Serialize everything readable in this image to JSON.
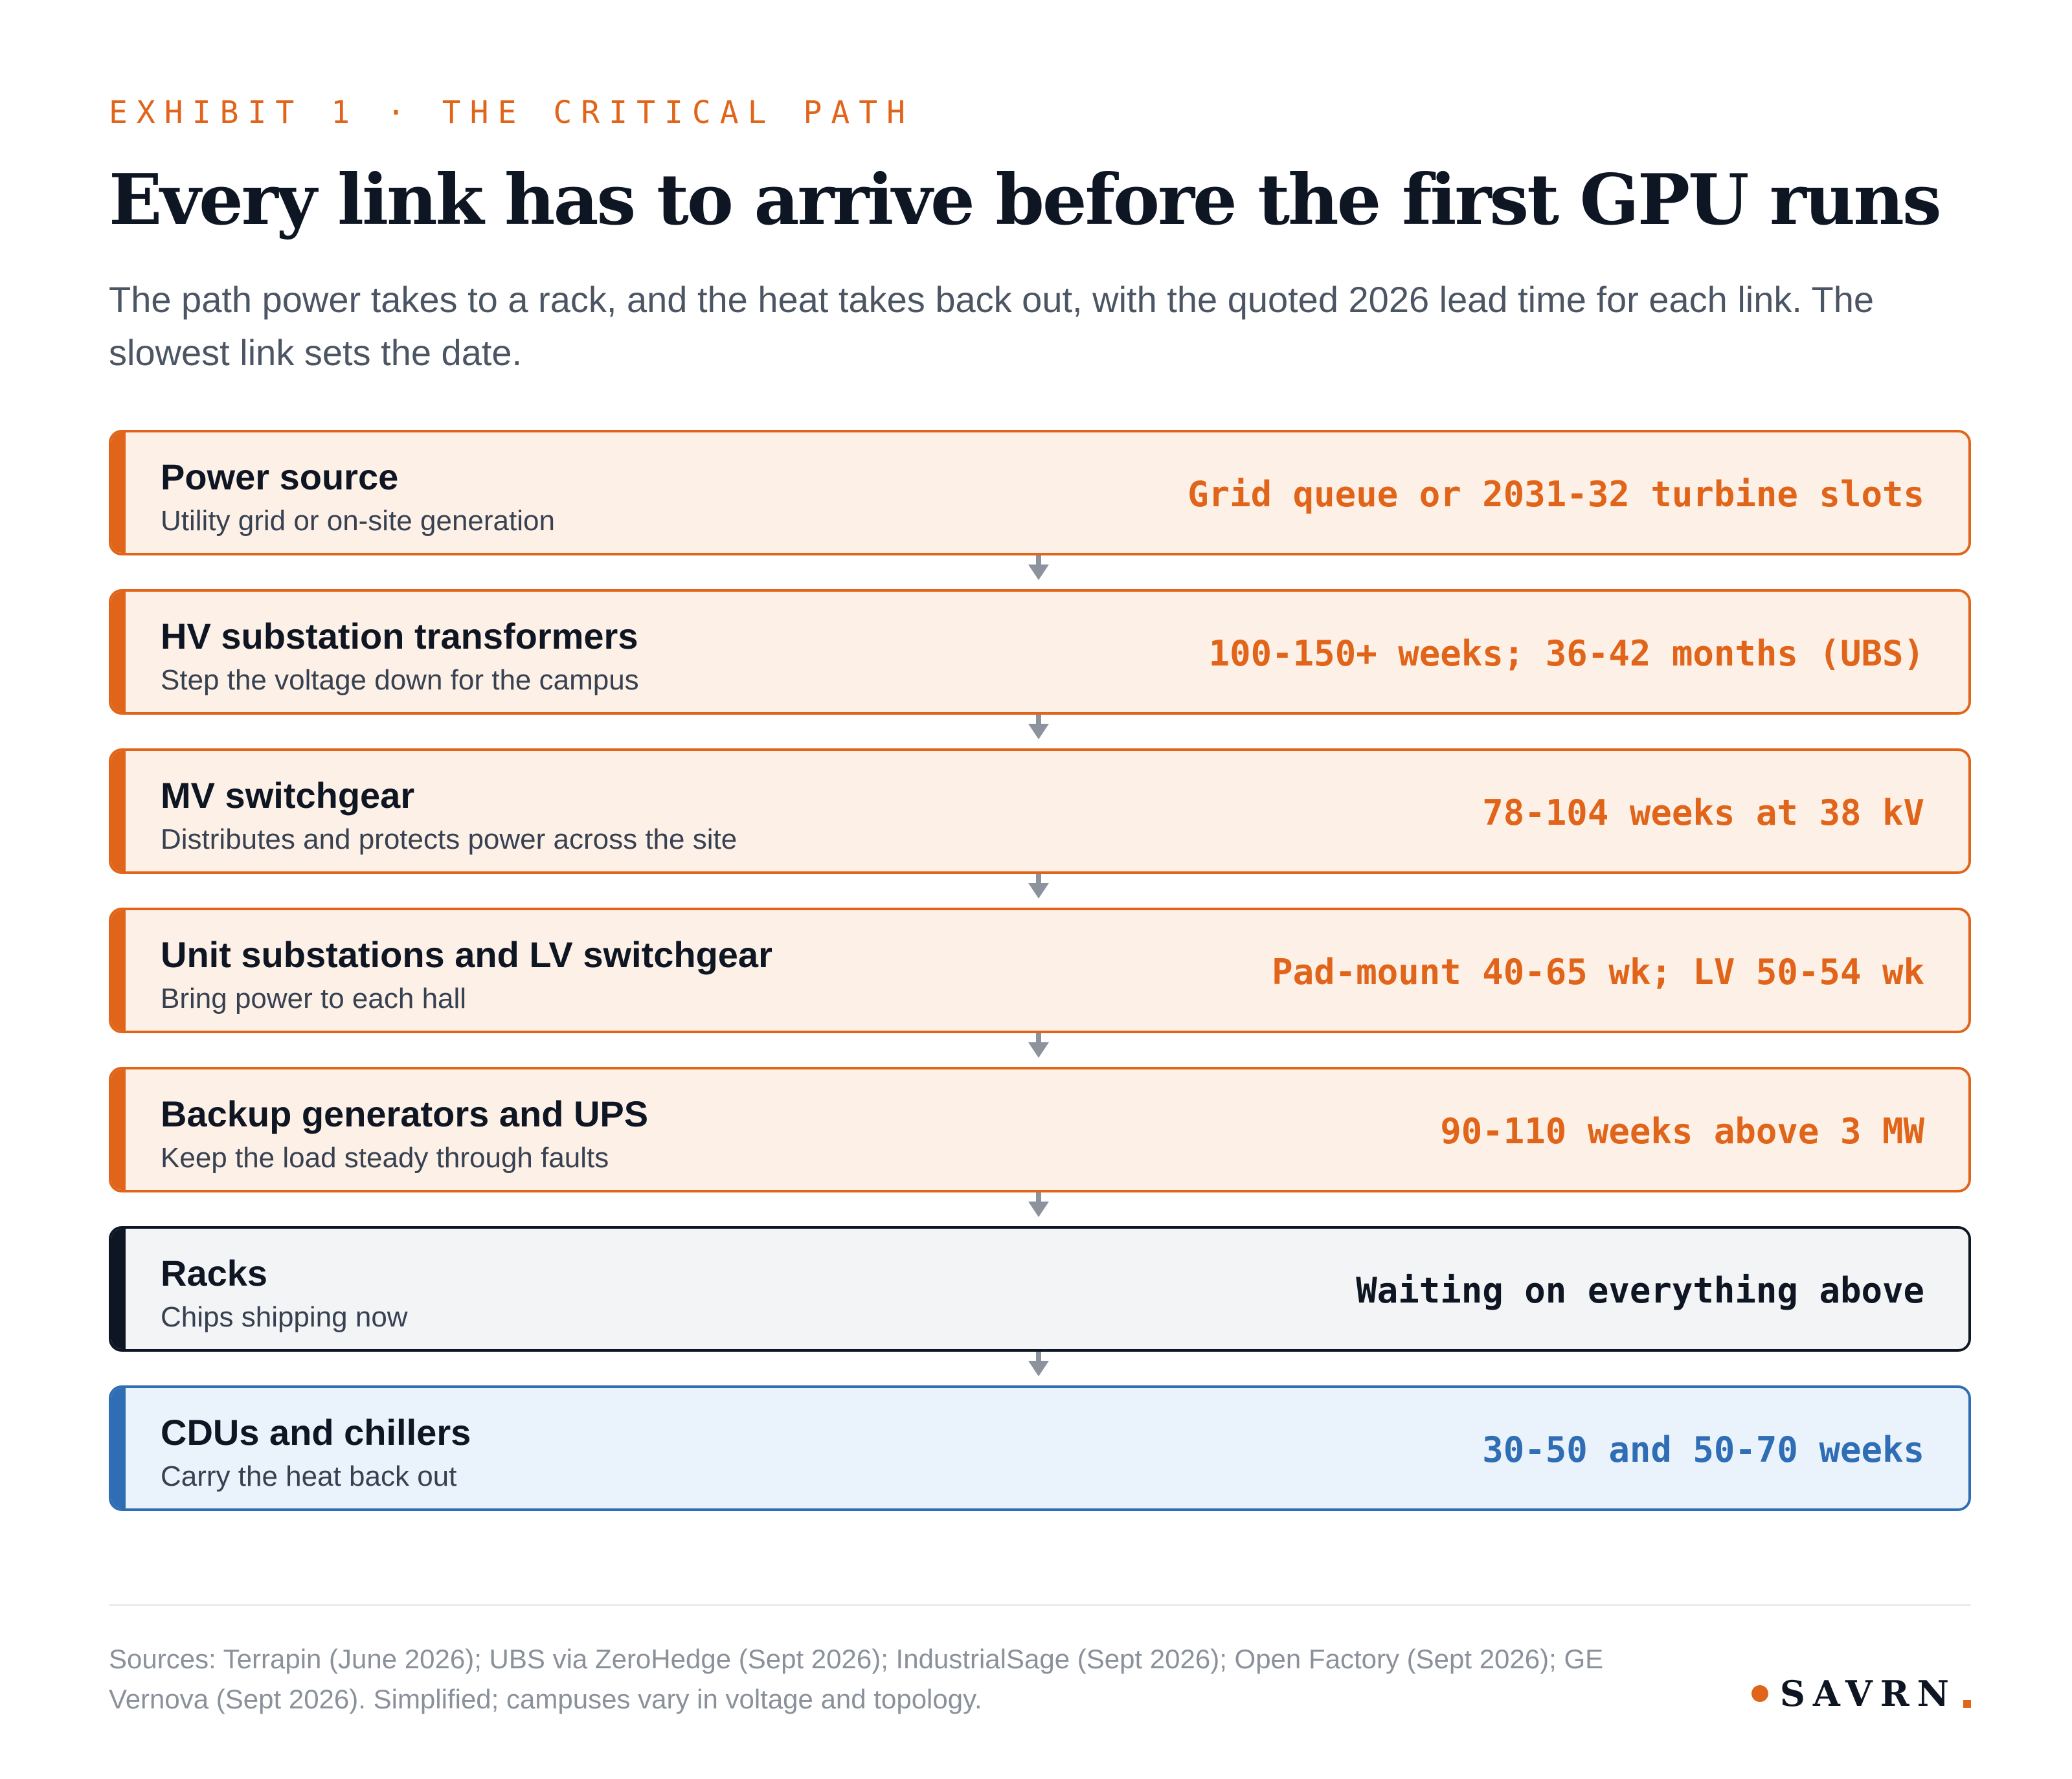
{
  "header": {
    "eyebrow": "EXHIBIT 1 · THE CRITICAL PATH",
    "title": "Every link has to arrive before the first GPU runs",
    "subtitle": "The path power takes to a rack, and the heat takes back out, with the quoted 2026 lead time for each link. The slowest link sets the date."
  },
  "steps": [
    {
      "label": "Power source",
      "desc": "Utility grid or on-site generation",
      "lead": "Grid queue or 2031-32 turbine slots",
      "tone": "warm",
      "color": "#e0651a"
    },
    {
      "label": "HV substation transformers",
      "desc": "Step the voltage down for the campus",
      "lead": "100-150+ weeks; 36-42 months (UBS)",
      "tone": "warm",
      "color": "#e0651a"
    },
    {
      "label": "MV switchgear",
      "desc": "Distributes and protects power across the site",
      "lead": "78-104 weeks at 38 kV",
      "tone": "warm",
      "color": "#e0651a"
    },
    {
      "label": "Unit substations and LV switchgear",
      "desc": "Bring power to each hall",
      "lead": "Pad-mount 40-65 wk; LV 50-54 wk",
      "tone": "warm",
      "color": "#e0651a"
    },
    {
      "label": "Backup generators and UPS",
      "desc": "Keep the load steady through faults",
      "lead": "90-110 weeks above 3 MW",
      "tone": "warm",
      "color": "#e0651a"
    },
    {
      "label": "Racks",
      "desc": "Chips shipping now",
      "lead": "Waiting on everything above",
      "tone": "neutral",
      "color": "#0f1623"
    },
    {
      "label": "CDUs and chillers",
      "desc": "Carry the heat back out",
      "lead": "30-50 and 50-70 weeks",
      "tone": "cool",
      "color": "#2f6db4"
    }
  ],
  "footer": {
    "sources": "Sources: Terrapin (June 2026); UBS via ZeroHedge (Sept 2026); IndustrialSage (Sept 2026); Open Factory (Sept 2026); GE Vernova (Sept 2026). Simplified; campuses vary in voltage and topology.",
    "logo": "SAVRN"
  },
  "icons": {
    "connector": "down-arrow-icon",
    "logo_dot": "dot-icon"
  }
}
